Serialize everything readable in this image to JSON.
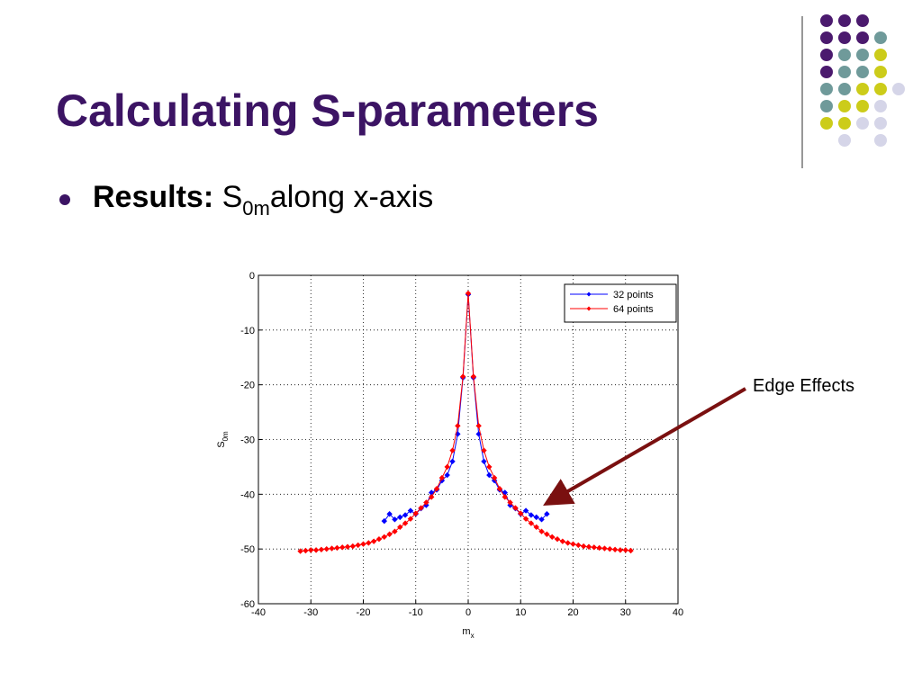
{
  "slide": {
    "title": "Calculating S-parameters",
    "bullet_label": "Results:",
    "bullet_symbol": "S",
    "bullet_symbol_sub": "0m",
    "bullet_text": "along x-axis"
  },
  "chart_data": {
    "type": "line",
    "xlabel": "m",
    "xlabel_sub": "x",
    "ylabel": "S",
    "ylabel_sub": "0m",
    "xlim": [
      -40,
      40
    ],
    "xticks": [
      -40,
      -30,
      -20,
      -10,
      0,
      10,
      20,
      30,
      40
    ],
    "ylim": [
      -60,
      0
    ],
    "yticks": [
      -60,
      -50,
      -40,
      -30,
      -20,
      -10,
      0
    ],
    "grid": true,
    "legend": "northeast",
    "series": [
      {
        "name": "32 points",
        "color": "#0000ff",
        "x": [
          -16,
          -15,
          -14,
          -13,
          -12,
          -11,
          -10,
          -9,
          -8,
          -7,
          -6,
          -5,
          -4,
          -3,
          -2,
          -1,
          0,
          1,
          2,
          3,
          4,
          5,
          6,
          7,
          8,
          9,
          10,
          11,
          12,
          13,
          14,
          15
        ],
        "values": [
          -44.9,
          -43.6,
          -44.6,
          -44.2,
          -43.8,
          -43,
          -43.6,
          -42.6,
          -42,
          -39.7,
          -39.2,
          -37.5,
          -36.5,
          -34,
          -29,
          -18.7,
          -3.5,
          -18.7,
          -29,
          -34,
          -36.5,
          -37.5,
          -39.2,
          -39.7,
          -42,
          -42.6,
          -43.6,
          -43,
          -43.8,
          -44.2,
          -44.6,
          -43.6
        ]
      },
      {
        "name": "64 points",
        "color": "#ff0000",
        "x": [
          -32,
          -31,
          -30,
          -29,
          -28,
          -27,
          -26,
          -25,
          -24,
          -23,
          -22,
          -21,
          -20,
          -19,
          -18,
          -17,
          -16,
          -15,
          -14,
          -13,
          -12,
          -11,
          -10,
          -9,
          -8,
          -7,
          -6,
          -5,
          -4,
          -3,
          -2,
          -1,
          0,
          1,
          2,
          3,
          4,
          5,
          6,
          7,
          8,
          9,
          10,
          11,
          12,
          13,
          14,
          15,
          16,
          17,
          18,
          19,
          20,
          21,
          22,
          23,
          24,
          25,
          26,
          27,
          28,
          29,
          30,
          31
        ],
        "values": [
          -50.4,
          -50.3,
          -50.2,
          -50.2,
          -50.1,
          -50,
          -49.9,
          -49.8,
          -49.7,
          -49.6,
          -49.5,
          -49.3,
          -49.1,
          -48.9,
          -48.6,
          -48.2,
          -47.8,
          -47.3,
          -46.8,
          -46,
          -45.3,
          -44.5,
          -43.5,
          -42.5,
          -41.5,
          -40.5,
          -39,
          -37,
          -35,
          -32,
          -27.5,
          -18.5,
          -3.3,
          -18.5,
          -27.5,
          -32,
          -35,
          -37,
          -39,
          -40.5,
          -41.5,
          -42.5,
          -43.5,
          -44.5,
          -45.3,
          -46,
          -46.8,
          -47.3,
          -47.8,
          -48.2,
          -48.6,
          -48.9,
          -49.1,
          -49.3,
          -49.5,
          -49.6,
          -49.7,
          -49.8,
          -49.9,
          -50,
          -50.1,
          -50.2,
          -50.2,
          -50.3
        ]
      }
    ],
    "annotation": "Edge Effects"
  }
}
